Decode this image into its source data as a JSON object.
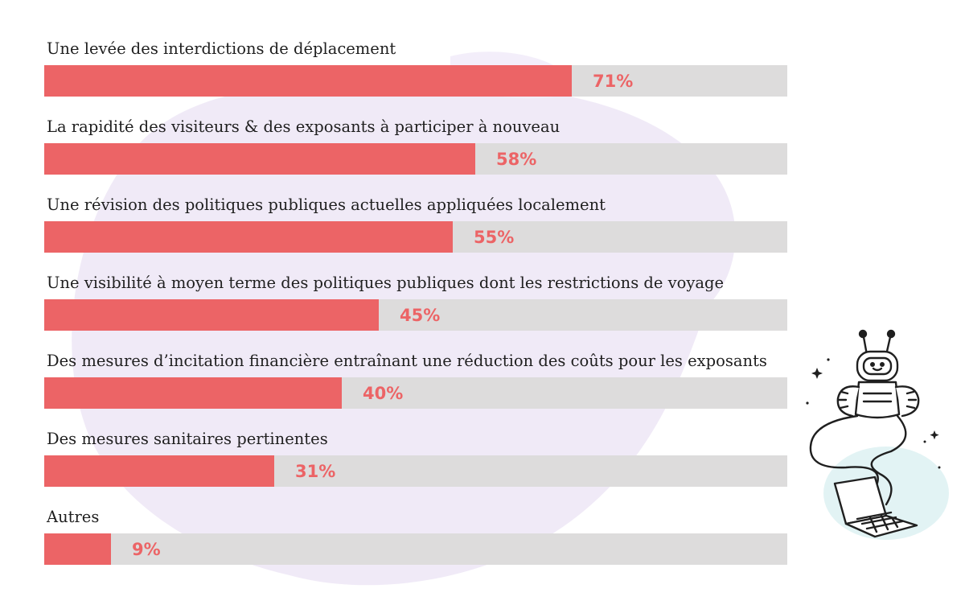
{
  "colors": {
    "bar_fill": "#ec6466",
    "bar_track": "#dddcdc",
    "value_text": "#ec6466",
    "label_text": "#1f1f1f",
    "background_blob": "#efe9f7"
  },
  "decorations": {
    "illustration": "robot-genie-laptop-icon"
  },
  "chart_data": {
    "type": "bar",
    "orientation": "horizontal",
    "categories": [
      "Une levée des interdictions de déplacement",
      "La rapidité des visiteurs & des exposants à participer à nouveau",
      "Une révision des politiques publiques actuelles appliquées localement",
      "Une visibilité à moyen terme des politiques publiques dont les restrictions de voyage",
      "Des mesures d’incitation financière entraînant une réduction des coûts pour les exposants",
      "Des mesures sanitaires pertinentes",
      "Autres"
    ],
    "values": [
      71,
      58,
      55,
      45,
      40,
      31,
      9
    ],
    "value_labels": [
      "71%",
      "58%",
      "55%",
      "45%",
      "40%",
      "31%",
      "9%"
    ],
    "xlim": [
      0,
      100
    ],
    "unit": "%",
    "title": "",
    "xlabel": "",
    "ylabel": "",
    "grid": false,
    "legend": "none"
  }
}
